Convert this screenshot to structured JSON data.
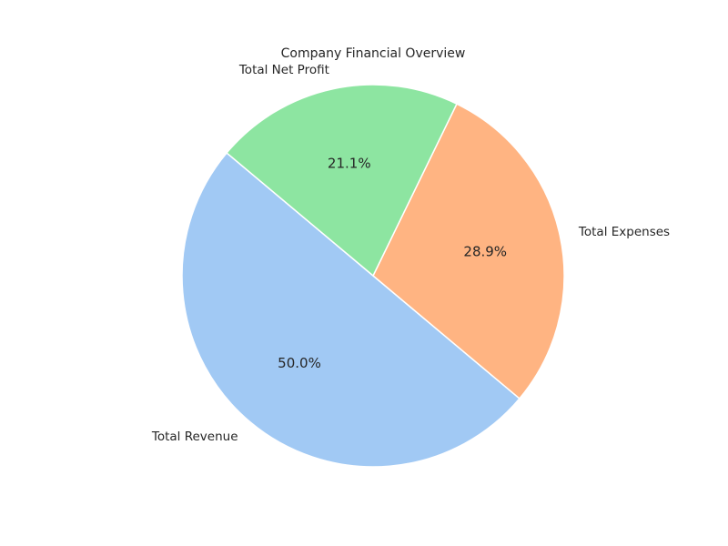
{
  "chart_data": {
    "type": "pie",
    "title": "Company Financial Overview",
    "slices": [
      {
        "label": "Total Revenue",
        "value": 50.0,
        "pct_label": "50.0%",
        "color": "#a1c9f4"
      },
      {
        "label": "Total Expenses",
        "value": 28.9,
        "pct_label": "28.9%",
        "color": "#ffb482"
      },
      {
        "label": "Total Net Profit",
        "value": 21.1,
        "pct_label": "21.1%",
        "color": "#8de5a1"
      }
    ],
    "start_angle_deg": 140,
    "direction": "counterclockwise",
    "legend": "none"
  }
}
